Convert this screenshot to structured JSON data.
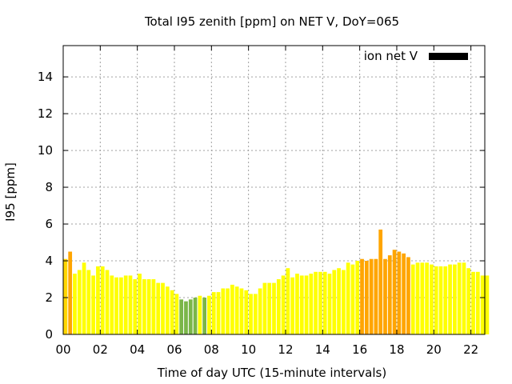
{
  "chart_data": {
    "type": "bar",
    "title": "Total I95 zenith [ppm] on NET V, DoY=065",
    "xlabel": "Time of day UTC (15-minute intervals)",
    "ylabel": "I95 [ppm]",
    "ylim": [
      0,
      15.7
    ],
    "yticks": [
      0,
      2,
      4,
      6,
      8,
      10,
      12,
      14
    ],
    "xlim_hours": [
      0,
      22.75
    ],
    "xticks": [
      "00",
      "02",
      "04",
      "06",
      "08",
      "10",
      "12",
      "14",
      "16",
      "18",
      "20",
      "22"
    ],
    "grid": true,
    "legend": {
      "position": "top-right",
      "entries": [
        {
          "label": "ion net V",
          "color": "#000000"
        }
      ]
    },
    "bar_interval_minutes": 15,
    "colors": {
      "yellow": "#ffff00",
      "yellow_orange": "#ffd700",
      "orange": "#ffa500",
      "green": "#7ab648"
    },
    "values": [
      4.1,
      4.5,
      3.3,
      3.5,
      3.9,
      3.5,
      3.2,
      3.7,
      3.7,
      3.5,
      3.2,
      3.1,
      3.1,
      3.2,
      3.2,
      3.0,
      3.3,
      3.0,
      3.0,
      3.0,
      2.8,
      2.8,
      2.6,
      2.4,
      2.2,
      1.9,
      1.8,
      1.9,
      2.0,
      2.1,
      2.0,
      2.1,
      2.3,
      2.3,
      2.5,
      2.5,
      2.7,
      2.6,
      2.5,
      2.4,
      2.2,
      2.2,
      2.5,
      2.8,
      2.8,
      2.8,
      3.0,
      3.2,
      3.6,
      3.1,
      3.3,
      3.2,
      3.2,
      3.3,
      3.4,
      3.4,
      3.4,
      3.3,
      3.5,
      3.6,
      3.5,
      3.9,
      3.8,
      4.0,
      4.1,
      4.0,
      4.1,
      4.1,
      5.7,
      4.1,
      4.3,
      4.6,
      4.5,
      4.4,
      4.2,
      3.8,
      3.9,
      3.9,
      3.9,
      3.8,
      3.7,
      3.7,
      3.7,
      3.8,
      3.8,
      3.9,
      3.9,
      3.6,
      3.4,
      3.4,
      3.2,
      3.2
    ],
    "bar_colors": [
      "yellow_orange",
      "orange",
      "yellow",
      "yellow",
      "yellow",
      "yellow",
      "yellow",
      "yellow",
      "yellow",
      "yellow",
      "yellow",
      "yellow",
      "yellow",
      "yellow",
      "yellow",
      "yellow",
      "yellow",
      "yellow",
      "yellow",
      "yellow",
      "yellow",
      "yellow",
      "yellow",
      "yellow",
      "yellow",
      "green",
      "green",
      "green",
      "green",
      "yellow",
      "green",
      "yellow",
      "yellow",
      "yellow",
      "yellow",
      "yellow",
      "yellow",
      "yellow",
      "yellow",
      "yellow",
      "yellow",
      "yellow",
      "yellow",
      "yellow",
      "yellow",
      "yellow",
      "yellow",
      "yellow",
      "yellow",
      "yellow",
      "yellow",
      "yellow",
      "yellow",
      "yellow",
      "yellow",
      "yellow",
      "yellow",
      "yellow",
      "yellow",
      "yellow",
      "yellow",
      "yellow",
      "yellow",
      "yellow",
      "orange",
      "orange",
      "orange",
      "orange",
      "orange",
      "orange",
      "orange",
      "orange",
      "orange",
      "orange",
      "orange",
      "yellow",
      "yellow",
      "yellow",
      "yellow",
      "yellow",
      "yellow",
      "yellow",
      "yellow",
      "yellow",
      "yellow",
      "yellow",
      "yellow",
      "yellow",
      "yellow",
      "yellow",
      "yellow",
      "yellow"
    ]
  }
}
